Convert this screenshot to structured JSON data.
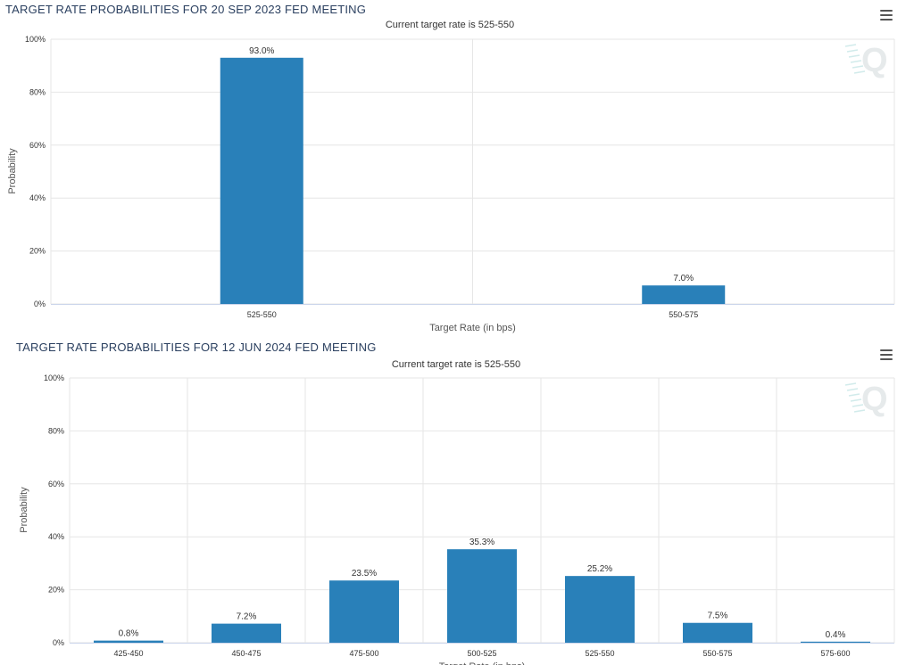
{
  "charts": [
    {
      "title": "TARGET RATE PROBABILITIES FOR 20 SEP 2023 FED MEETING",
      "subtitle": "Current target rate is 525-550",
      "xlabel": "Target Rate (in bps)",
      "ylabel": "Probability",
      "yticks": [
        "0%",
        "20%",
        "40%",
        "60%",
        "80%",
        "100%"
      ]
    },
    {
      "title": "TARGET RATE PROBABILITIES FOR 12 JUN 2024 FED MEETING",
      "subtitle": "Current target rate is 525-550",
      "xlabel": "Target Rate (in bps)",
      "ylabel": "Probability",
      "yticks": [
        "0%",
        "20%",
        "40%",
        "60%",
        "80%",
        "100%"
      ]
    }
  ],
  "colors": {
    "bar": "#2980b9",
    "grid": "#e6e6e6",
    "axis": "#ccd6eb",
    "text": "#333333"
  },
  "icons": {
    "menu": "hamburger-menu-icon",
    "watermark": "q-logo-watermark"
  },
  "chart_data": [
    {
      "type": "bar",
      "title": "TARGET RATE PROBABILITIES FOR 20 SEP 2023 FED MEETING",
      "subtitle": "Current target rate is 525-550",
      "xlabel": "Target Rate (in bps)",
      "ylabel": "Probability",
      "categories": [
        "525-550",
        "550-575"
      ],
      "values": [
        93.0,
        7.0
      ],
      "data_labels": [
        "93.0%",
        "7.0%"
      ],
      "ylim": [
        0,
        100
      ],
      "grid": true
    },
    {
      "type": "bar",
      "title": "TARGET RATE PROBABILITIES FOR 12 JUN 2024 FED MEETING",
      "subtitle": "Current target rate is 525-550",
      "xlabel": "Target Rate (in bps)",
      "ylabel": "Probability",
      "categories": [
        "425-450",
        "450-475",
        "475-500",
        "500-525",
        "525-550",
        "550-575",
        "575-600"
      ],
      "values": [
        0.8,
        7.2,
        23.5,
        35.3,
        25.2,
        7.5,
        0.4
      ],
      "data_labels": [
        "0.8%",
        "7.2%",
        "23.5%",
        "35.3%",
        "25.2%",
        "7.5%",
        "0.4%"
      ],
      "ylim": [
        0,
        100
      ],
      "grid": true
    }
  ]
}
